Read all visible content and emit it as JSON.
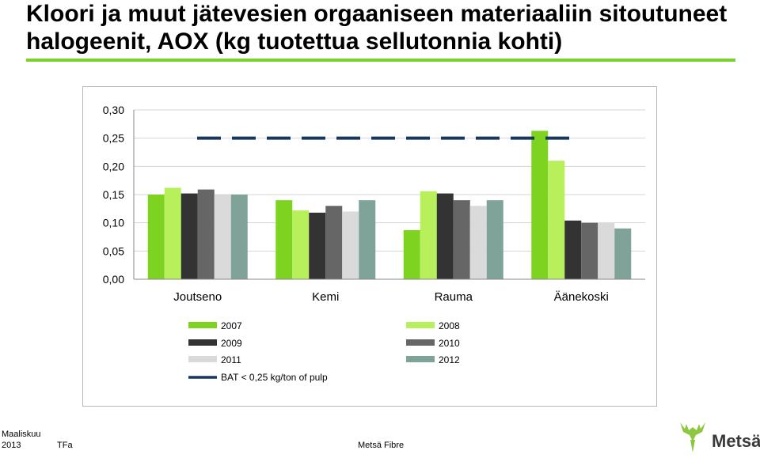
{
  "slide": {
    "title": "Kloori ja muut jätevesien orgaaniseen materiaaliin sitoutuneet halogeenit, AOX (kg tuotettua sellutonnia kohti)"
  },
  "footer": {
    "date_line1": "Maaliskuu",
    "date_line2": "2013",
    "author": "TFa",
    "company": "Metsä Fibre",
    "logo_text": "Metsä"
  },
  "colors": {
    "accent": "#78d22a",
    "logo_green": "#8dc63f",
    "logo_dark": "#3a3a3a"
  },
  "chart_data": {
    "type": "bar",
    "categories": [
      "Joutseno",
      "Kemi",
      "Rauma",
      "Äänekoski"
    ],
    "series": [
      {
        "name": "2007",
        "color": "#7ed321",
        "values": [
          0.15,
          0.14,
          0.087,
          0.263
        ]
      },
      {
        "name": "2008",
        "color": "#b7f05a",
        "values": [
          0.162,
          0.122,
          0.156,
          0.21
        ]
      },
      {
        "name": "2009",
        "color": "#333333",
        "values": [
          0.152,
          0.118,
          0.152,
          0.104
        ]
      },
      {
        "name": "2010",
        "color": "#666666",
        "values": [
          0.159,
          0.13,
          0.14,
          0.1
        ]
      },
      {
        "name": "2011",
        "color": "#dadada",
        "values": [
          0.15,
          0.12,
          0.13,
          0.1
        ]
      },
      {
        "name": "2012",
        "color": "#7fa398",
        "values": [
          0.15,
          0.14,
          0.14,
          0.09
        ]
      }
    ],
    "reference_line": {
      "name": "BAT < 0,25 kg/ton of pulp",
      "value": 0.25,
      "color": "#17375e",
      "style": "dashed"
    },
    "ylim": [
      0,
      0.3
    ],
    "yticks": [
      "0,00",
      "0,05",
      "0,10",
      "0,15",
      "0,20",
      "0,25",
      "0,30"
    ],
    "xlabel": "",
    "ylabel": "",
    "grid": true,
    "legend_position": "bottom"
  }
}
